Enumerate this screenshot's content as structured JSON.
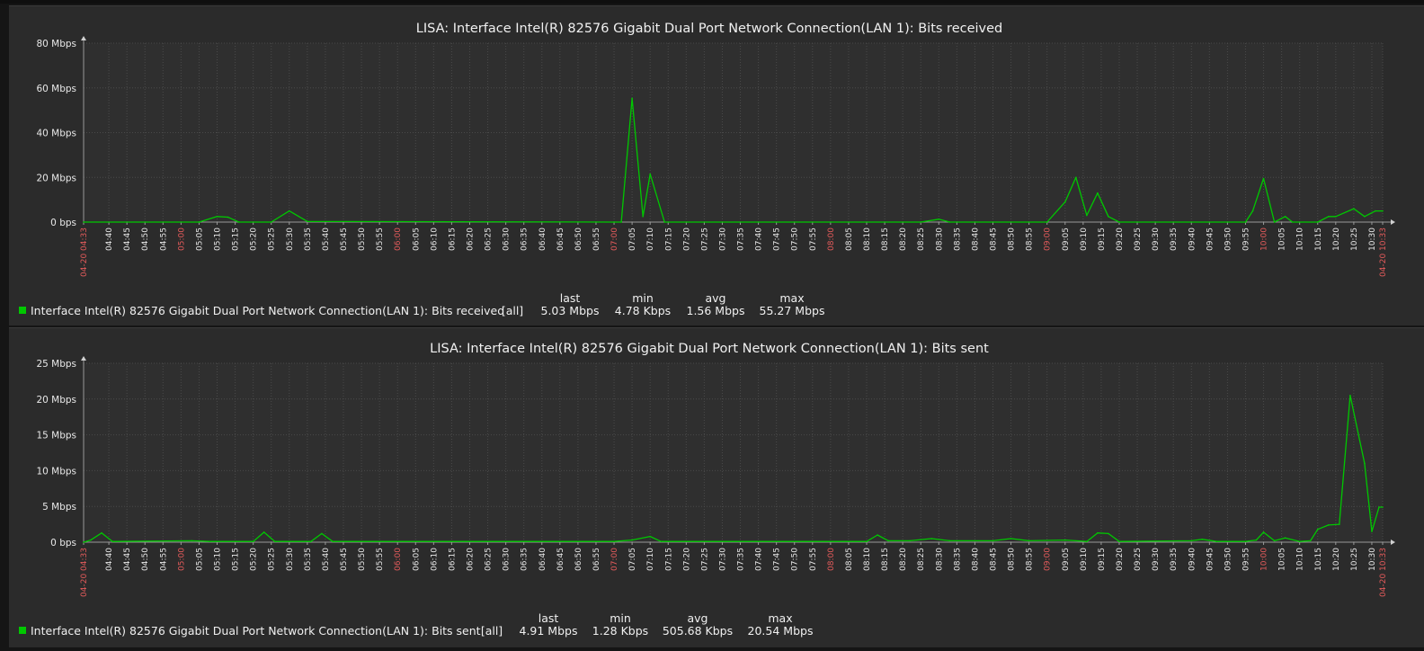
{
  "colors": {
    "series": "#00c800",
    "grid": "#4a4a4a",
    "axis": "#9a9a9a",
    "major_tick_label": "#e45b5b"
  },
  "legend_headers": [
    "last",
    "min",
    "avg",
    "max"
  ],
  "chart_data": [
    {
      "type": "line",
      "title": "LISA: Interface Intel(R) 82576 Gigabit Dual Port Network Connection(LAN 1): Bits received",
      "ylim": [
        0,
        80
      ],
      "y_unit": "Mbps",
      "y_ticks": [
        {
          "value": 80,
          "label": "80 Mbps"
        },
        {
          "value": 60,
          "label": "60 Mbps"
        },
        {
          "value": 40,
          "label": "40 Mbps"
        },
        {
          "value": 20,
          "label": "20 Mbps"
        },
        {
          "value": 0,
          "label": "0 bps"
        }
      ],
      "x_tick_labels": [
        "04-20 04:33",
        "04:40",
        "04:45",
        "04:50",
        "04:55",
        "05:00",
        "05:05",
        "05:10",
        "05:15",
        "05:20",
        "05:25",
        "05:30",
        "05:35",
        "05:40",
        "05:45",
        "05:50",
        "05:55",
        "06:00",
        "06:05",
        "06:10",
        "06:15",
        "06:20",
        "06:25",
        "06:30",
        "06:35",
        "06:40",
        "06:45",
        "06:50",
        "06:55",
        "07:00",
        "07:05",
        "07:10",
        "07:15",
        "07:20",
        "07:25",
        "07:30",
        "07:35",
        "07:40",
        "07:45",
        "07:50",
        "07:55",
        "08:00",
        "08:05",
        "08:10",
        "08:15",
        "08:20",
        "08:25",
        "08:30",
        "08:35",
        "08:40",
        "08:45",
        "08:50",
        "08:55",
        "09:00",
        "09:05",
        "09:10",
        "09:15",
        "09:20",
        "09:25",
        "09:30",
        "09:35",
        "09:40",
        "09:45",
        "09:50",
        "09:55",
        "10:00",
        "10:05",
        "10:10",
        "10:15",
        "10:20",
        "10:25",
        "10:30",
        "04-20 10:33"
      ],
      "major_ticks": [
        "04-20 04:33",
        "05:00",
        "06:00",
        "07:00",
        "08:00",
        "09:00",
        "10:00",
        "04-20 10:33"
      ],
      "series": [
        {
          "name": "Interface Intel(R) 82576 Gigabit Dual Port Network Connection(LAN 1): Bits received",
          "points": [
            [
              "04:33",
              0
            ],
            [
              "05:05",
              0
            ],
            [
              "05:10",
              2.5
            ],
            [
              "05:13",
              2.2
            ],
            [
              "05:16",
              0
            ],
            [
              "05:25",
              0
            ],
            [
              "05:30",
              5
            ],
            [
              "05:35",
              0.3
            ],
            [
              "07:00",
              0
            ],
            [
              "07:02",
              0
            ],
            [
              "07:05",
              55.3
            ],
            [
              "07:08",
              2.5
            ],
            [
              "07:10",
              21.5
            ],
            [
              "07:14",
              0
            ],
            [
              "08:25",
              0
            ],
            [
              "08:30",
              1.3
            ],
            [
              "08:33",
              0
            ],
            [
              "09:00",
              0
            ],
            [
              "09:05",
              9
            ],
            [
              "09:08",
              20
            ],
            [
              "09:11",
              3
            ],
            [
              "09:14",
              13
            ],
            [
              "09:17",
              2.5
            ],
            [
              "09:20",
              0
            ],
            [
              "09:55",
              0
            ],
            [
              "09:57",
              5
            ],
            [
              "10:00",
              19.5
            ],
            [
              "10:03",
              0
            ],
            [
              "10:06",
              2.5
            ],
            [
              "10:08",
              0
            ],
            [
              "10:15",
              0
            ],
            [
              "10:18",
              2.5
            ],
            [
              "10:20",
              2.5
            ],
            [
              "10:25",
              6
            ],
            [
              "10:28",
              2.5
            ],
            [
              "10:31",
              5
            ],
            [
              "10:33",
              5
            ]
          ]
        }
      ],
      "legend": {
        "label": "Interface Intel(R) 82576 Gigabit Dual Port Network Connection(LAN 1): Bits received",
        "function": "[all]",
        "last": "5.03 Mbps",
        "min": "4.78 Kbps",
        "avg": "1.56 Mbps",
        "max": "55.27 Mbps"
      }
    },
    {
      "type": "line",
      "title": "LISA: Interface Intel(R) 82576 Gigabit Dual Port Network Connection(LAN 1): Bits sent",
      "ylim": [
        0,
        25
      ],
      "y_unit": "Mbps",
      "y_ticks": [
        {
          "value": 25,
          "label": "25 Mbps"
        },
        {
          "value": 20,
          "label": "20 Mbps"
        },
        {
          "value": 15,
          "label": "15 Mbps"
        },
        {
          "value": 10,
          "label": "10 Mbps"
        },
        {
          "value": 5,
          "label": "5 Mbps"
        },
        {
          "value": 0,
          "label": "0 bps"
        }
      ],
      "x_tick_labels": [
        "04-20 04:33",
        "04:40",
        "04:45",
        "04:50",
        "04:55",
        "05:00",
        "05:05",
        "05:10",
        "05:15",
        "05:20",
        "05:25",
        "05:30",
        "05:35",
        "05:40",
        "05:45",
        "05:50",
        "05:55",
        "06:00",
        "06:05",
        "06:10",
        "06:15",
        "06:20",
        "06:25",
        "06:30",
        "06:35",
        "06:40",
        "06:45",
        "06:50",
        "06:55",
        "07:00",
        "07:05",
        "07:10",
        "07:15",
        "07:20",
        "07:25",
        "07:30",
        "07:35",
        "07:40",
        "07:45",
        "07:50",
        "07:55",
        "08:00",
        "08:05",
        "08:10",
        "08:15",
        "08:20",
        "08:25",
        "08:30",
        "08:35",
        "08:40",
        "08:45",
        "08:50",
        "08:55",
        "09:00",
        "09:05",
        "09:10",
        "09:15",
        "09:20",
        "09:25",
        "09:30",
        "09:35",
        "09:40",
        "09:45",
        "09:50",
        "09:55",
        "10:00",
        "10:05",
        "10:10",
        "10:15",
        "10:20",
        "10:25",
        "10:30",
        "04-20 10:33"
      ],
      "major_ticks": [
        "04-20 04:33",
        "05:00",
        "06:00",
        "07:00",
        "08:00",
        "09:00",
        "10:00",
        "04-20 10:33"
      ],
      "series": [
        {
          "name": "Interface Intel(R) 82576 Gigabit Dual Port Network Connection(LAN 1): Bits sent",
          "points": [
            [
              "04:33",
              0
            ],
            [
              "04:35",
              0.3
            ],
            [
              "04:38",
              1.3
            ],
            [
              "04:41",
              0.1
            ],
            [
              "05:03",
              0.2
            ],
            [
              "05:08",
              0.1
            ],
            [
              "05:20",
              0.1
            ],
            [
              "05:23",
              1.4
            ],
            [
              "05:26",
              0.1
            ],
            [
              "05:36",
              0.1
            ],
            [
              "05:39",
              1.2
            ],
            [
              "05:42",
              0.1
            ],
            [
              "07:00",
              0.1
            ],
            [
              "07:05",
              0.3
            ],
            [
              "07:10",
              0.8
            ],
            [
              "07:13",
              0.1
            ],
            [
              "08:10",
              0.1
            ],
            [
              "08:13",
              1
            ],
            [
              "08:16",
              0.2
            ],
            [
              "08:22",
              0.2
            ],
            [
              "08:28",
              0.5
            ],
            [
              "08:33",
              0.2
            ],
            [
              "08:45",
              0.2
            ],
            [
              "08:50",
              0.5
            ],
            [
              "08:55",
              0.2
            ],
            [
              "09:05",
              0.3
            ],
            [
              "09:11",
              0.1
            ],
            [
              "09:14",
              1.3
            ],
            [
              "09:17",
              1.2
            ],
            [
              "09:20",
              0.1
            ],
            [
              "09:40",
              0.2
            ],
            [
              "09:43",
              0.4
            ],
            [
              "09:47",
              0.1
            ],
            [
              "09:55",
              0.1
            ],
            [
              "09:58",
              0.3
            ],
            [
              "10:00",
              1.4
            ],
            [
              "10:03",
              0.2
            ],
            [
              "10:06",
              0.6
            ],
            [
              "10:10",
              0.1
            ],
            [
              "10:13",
              0.2
            ],
            [
              "10:15",
              1.8
            ],
            [
              "10:18",
              2.4
            ],
            [
              "10:21",
              2.5
            ],
            [
              "10:24",
              20.5
            ],
            [
              "10:28",
              11
            ],
            [
              "10:30",
              1.5
            ],
            [
              "10:32",
              4.9
            ],
            [
              "10:33",
              4.9
            ]
          ]
        }
      ],
      "legend": {
        "label": "Interface Intel(R) 82576 Gigabit Dual Port Network Connection(LAN 1): Bits sent",
        "function": "[all]",
        "last": "4.91 Mbps",
        "min": "1.28 Kbps",
        "avg": "505.68 Kbps",
        "max": "20.54 Mbps"
      }
    }
  ]
}
